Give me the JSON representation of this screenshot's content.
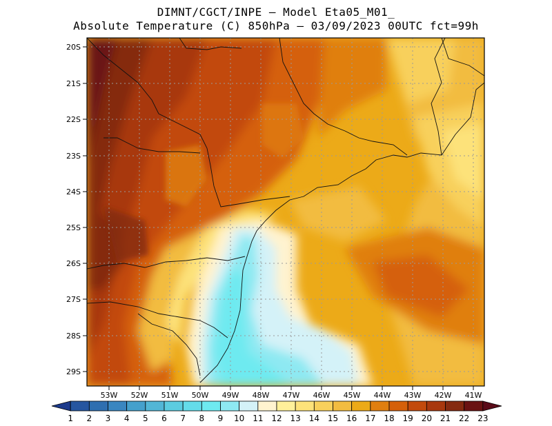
{
  "header": {
    "line1": "DIMNT/CGCT/INPE –  Model Eta05_M01_",
    "line2": "Absolute Temperature (C) 850hPa –  03/09/2023 00UTC fct=99h"
  },
  "map": {
    "lat_labels": [
      "20S",
      "21S",
      "22S",
      "23S",
      "24S",
      "25S",
      "26S",
      "27S",
      "28S",
      "29S"
    ],
    "lon_labels": [
      "53W",
      "52W",
      "51W",
      "50W",
      "49W",
      "48W",
      "47W",
      "46W",
      "45W",
      "44W",
      "43W",
      "42W",
      "41W"
    ]
  },
  "colorbar": {
    "labels": [
      "1",
      "2",
      "3",
      "4",
      "5",
      "6",
      "7",
      "8",
      "9",
      "10",
      "11",
      "12",
      "13",
      "14",
      "15",
      "16",
      "17",
      "18",
      "19",
      "20",
      "21",
      "22",
      "23"
    ],
    "colors": [
      "#1c3a8c",
      "#2656a0",
      "#2f6fb0",
      "#3a86c0",
      "#45a0cc",
      "#52b6d6",
      "#5ccce0",
      "#64dcea",
      "#6eeaf0",
      "#8ee9f2",
      "#d4f2f8",
      "#fff3cf",
      "#fff09a",
      "#fde27a",
      "#f8d05c",
      "#f2bc40",
      "#ecaa18",
      "#e07f10",
      "#d5600a",
      "#c24a0c",
      "#a8380e",
      "#852a10",
      "#6a1212",
      "#5a0a18"
    ]
  }
}
